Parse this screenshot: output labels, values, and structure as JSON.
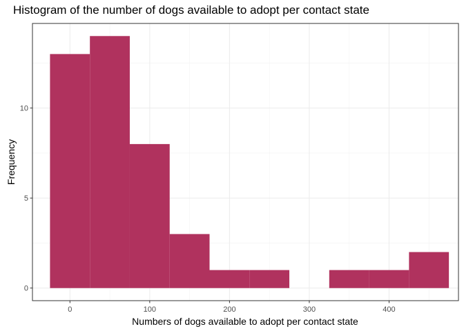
{
  "chart_data": {
    "type": "histogram",
    "title": "Histogram of the number of dogs available to adopt per contact state",
    "xlabel": "Numbers of dogs available to adopt per contact state",
    "ylabel": "Frequency",
    "xlim": [
      -47,
      487
    ],
    "ylim": [
      -0.7,
      14.7
    ],
    "x_ticks": [
      0,
      100,
      200,
      300,
      400
    ],
    "y_ticks": [
      0,
      5,
      10
    ],
    "bins": [
      {
        "start": -25,
        "end": 25,
        "count": 13
      },
      {
        "start": 25,
        "end": 75,
        "count": 14
      },
      {
        "start": 75,
        "end": 125,
        "count": 8
      },
      {
        "start": 125,
        "end": 175,
        "count": 3
      },
      {
        "start": 175,
        "end": 225,
        "count": 1
      },
      {
        "start": 225,
        "end": 275,
        "count": 1
      },
      {
        "start": 275,
        "end": 325,
        "count": 0
      },
      {
        "start": 325,
        "end": 375,
        "count": 1
      },
      {
        "start": 375,
        "end": 425,
        "count": 1
      },
      {
        "start": 425,
        "end": 475,
        "count": 2
      }
    ],
    "bar_color": "#b0325e",
    "grid": true,
    "theme": "bw"
  }
}
